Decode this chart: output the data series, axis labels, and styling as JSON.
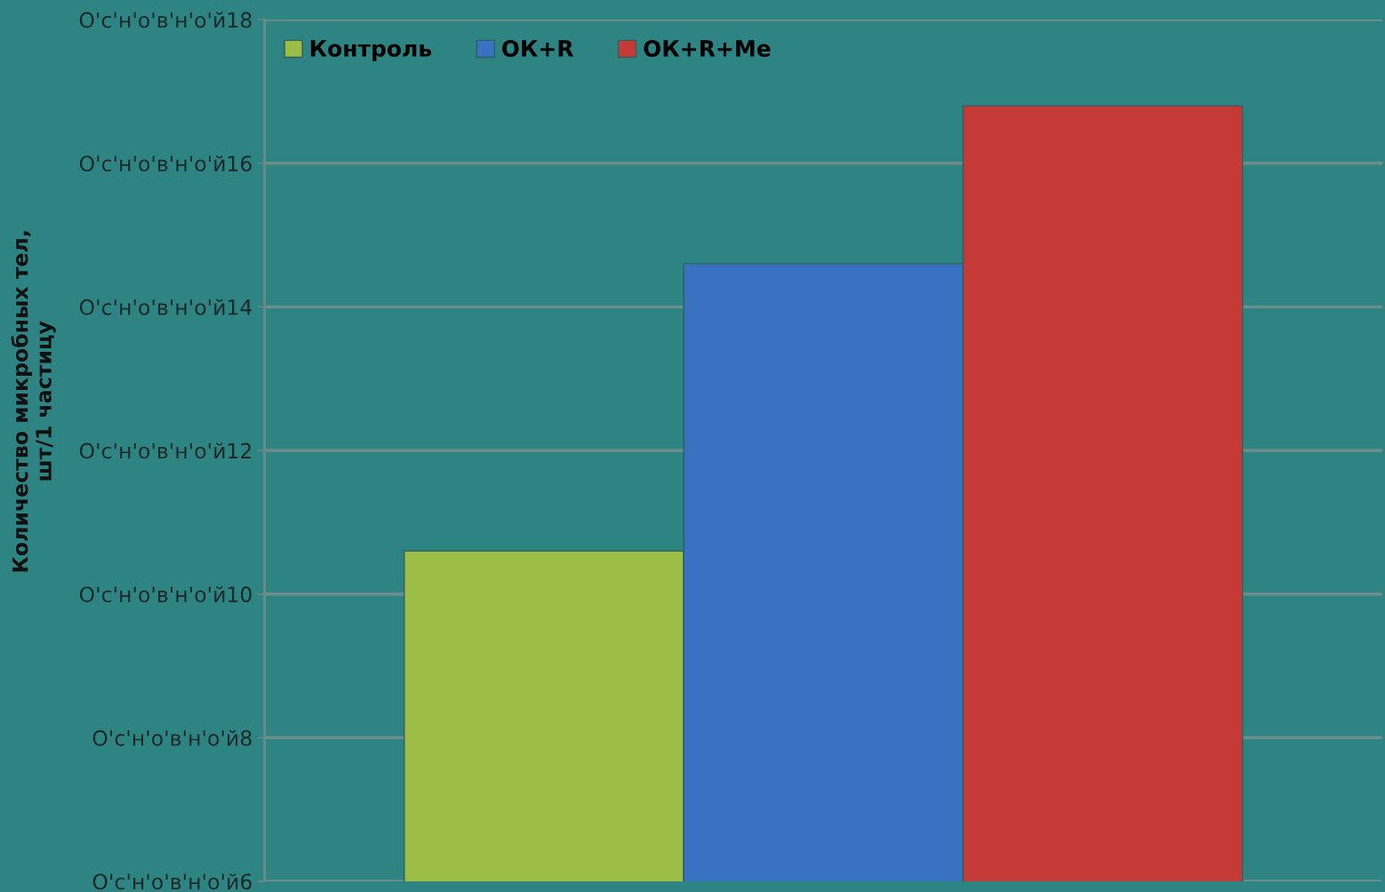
{
  "chart_data": {
    "type": "bar",
    "categories": [
      null
    ],
    "series": [
      {
        "name": "Контроль",
        "color": "#9bbd45",
        "values": [
          10.6
        ]
      },
      {
        "name": "ОК+R",
        "color": "#3a72c2",
        "values": [
          14.6
        ]
      },
      {
        "name": "ОК+R+Me",
        "color": "#c53a36",
        "values": [
          16.8
        ]
      }
    ],
    "ylim": [
      6,
      18
    ],
    "yticks": [
      6,
      8,
      10,
      12,
      14,
      16,
      18
    ],
    "annotations": [
      "O'c'н'o'в'н'o'й",
      "Количество микробных тел,\nшт/1 частицу"
    ],
    "grid": "y",
    "legend": "top left"
  }
}
